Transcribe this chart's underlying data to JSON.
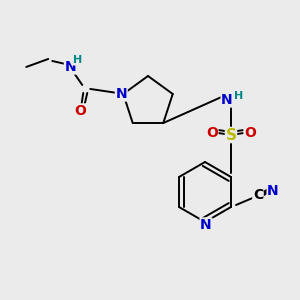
{
  "bg_color": "#ebebeb",
  "atom_colors": {
    "C": "#000000",
    "N": "#0000cc",
    "O": "#cc0000",
    "S": "#bbbb00",
    "H": "#008888"
  },
  "bond_color": "#000000",
  "figsize": [
    3.0,
    3.0
  ],
  "dpi": 100,
  "lw": 1.4,
  "fs": 10,
  "fsh": 8
}
